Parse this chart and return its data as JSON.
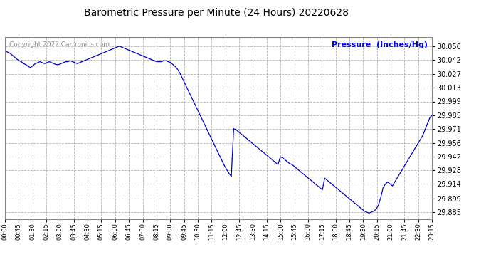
{
  "title": "Barometric Pressure per Minute (24 Hours) 20220628",
  "copyright_text": "Copyright 2022 Cartronics.com",
  "ylabel": "Pressure  (Inches/Hg)",
  "line_color": "#0000cc",
  "bg_color": "#ffffff",
  "grid_color": "#aaaaaa",
  "grid_style": "--",
  "yticks": [
    29.885,
    29.899,
    29.914,
    29.928,
    29.942,
    29.956,
    29.971,
    29.985,
    29.999,
    30.013,
    30.027,
    30.042,
    30.056
  ],
  "ylim": [
    29.878,
    30.065
  ],
  "xtick_labels": [
    "00:00",
    "00:45",
    "01:30",
    "02:15",
    "03:00",
    "03:45",
    "04:30",
    "05:15",
    "06:00",
    "06:45",
    "07:30",
    "08:15",
    "09:00",
    "09:45",
    "10:30",
    "11:15",
    "12:00",
    "12:45",
    "13:30",
    "14:15",
    "15:00",
    "15:45",
    "16:30",
    "17:15",
    "18:00",
    "18:45",
    "19:30",
    "20:15",
    "21:00",
    "21:45",
    "22:30",
    "23:15"
  ],
  "pressure_values": [
    30.052,
    30.05,
    30.049,
    30.047,
    30.045,
    30.043,
    30.041,
    30.04,
    30.038,
    30.037,
    30.035,
    30.034,
    30.036,
    30.038,
    30.039,
    30.04,
    30.039,
    30.038,
    30.039,
    30.04,
    30.039,
    30.038,
    30.037,
    30.037,
    30.038,
    30.039,
    30.04,
    30.04,
    30.041,
    30.04,
    30.039,
    30.038,
    30.039,
    30.04,
    30.041,
    30.042,
    30.043,
    30.044,
    30.045,
    30.046,
    30.047,
    30.048,
    30.049,
    30.05,
    30.051,
    30.052,
    30.053,
    30.054,
    30.055,
    30.056,
    30.055,
    30.054,
    30.053,
    30.052,
    30.051,
    30.05,
    30.049,
    30.048,
    30.047,
    30.046,
    30.045,
    30.044,
    30.043,
    30.042,
    30.041,
    30.04,
    30.04,
    30.04,
    30.041,
    30.041,
    30.04,
    30.039,
    30.037,
    30.035,
    30.032,
    30.028,
    30.023,
    30.018,
    30.013,
    30.008,
    30.003,
    29.998,
    29.993,
    29.988,
    29.983,
    29.978,
    29.973,
    29.968,
    29.963,
    29.958,
    29.953,
    29.948,
    29.943,
    29.938,
    29.933,
    29.929,
    29.925,
    29.922,
    29.971,
    29.97,
    29.968,
    29.966,
    29.964,
    29.962,
    29.96,
    29.958,
    29.956,
    29.954,
    29.952,
    29.95,
    29.948,
    29.946,
    29.944,
    29.942,
    29.94,
    29.938,
    29.936,
    29.934,
    29.942,
    29.941,
    29.939,
    29.937,
    29.935,
    29.934,
    29.932,
    29.93,
    29.928,
    29.926,
    29.924,
    29.922,
    29.92,
    29.918,
    29.916,
    29.914,
    29.912,
    29.91,
    29.908,
    29.92,
    29.918,
    29.916,
    29.914,
    29.912,
    29.91,
    29.908,
    29.906,
    29.904,
    29.902,
    29.9,
    29.898,
    29.896,
    29.894,
    29.892,
    29.89,
    29.888,
    29.886,
    29.885,
    29.884,
    29.885,
    29.886,
    29.888,
    29.892,
    29.9,
    29.91,
    29.914,
    29.916,
    29.914,
    29.912,
    29.916,
    29.92,
    29.924,
    29.928,
    29.932,
    29.936,
    29.94,
    29.944,
    29.948,
    29.952,
    29.956,
    29.96,
    29.964,
    29.97,
    29.976,
    29.982,
    29.985
  ]
}
